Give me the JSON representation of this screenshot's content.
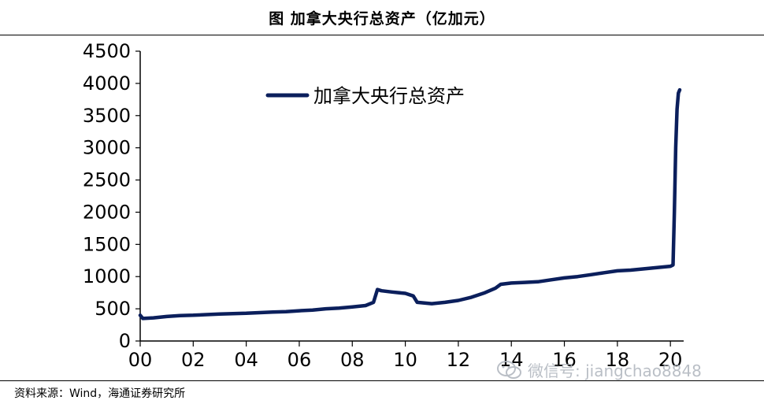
{
  "header": {
    "title": "图 加拿大央行总资产（亿加元）"
  },
  "footer": {
    "source": "资料来源：Wind，海通证券研究所"
  },
  "watermark": {
    "text": "微信号: jiangchao8848",
    "icon": "wechat-icon"
  },
  "colors": {
    "line": "#0b1f5c",
    "axis": "#000000",
    "watermark": "#aeb4bd"
  },
  "chart_data": {
    "type": "line",
    "title": "",
    "xlabel": "",
    "ylabel": "",
    "ylim": [
      0,
      4500
    ],
    "xlim": [
      2000,
      2020.5
    ],
    "yticks": [
      0,
      500,
      1000,
      1500,
      2000,
      2500,
      3000,
      3500,
      4000,
      4500
    ],
    "xtick_labels": [
      "00",
      "02",
      "04",
      "06",
      "08",
      "10",
      "12",
      "14",
      "16",
      "18",
      "20"
    ],
    "grid": false,
    "legend": {
      "position": "top-left",
      "entries": [
        "加拿大央行总资产"
      ]
    },
    "series": [
      {
        "name": "加拿大央行总资产",
        "x": [
          2000.0,
          2000.1,
          2000.5,
          2001.0,
          2001.5,
          2002.0,
          2002.5,
          2003.0,
          2003.5,
          2004.0,
          2004.5,
          2005.0,
          2005.5,
          2006.0,
          2006.5,
          2007.0,
          2007.5,
          2008.0,
          2008.5,
          2008.8,
          2008.95,
          2009.1,
          2009.5,
          2010.0,
          2010.3,
          2010.45,
          2011.0,
          2011.5,
          2012.0,
          2012.5,
          2013.0,
          2013.4,
          2013.6,
          2014.0,
          2014.5,
          2015.0,
          2015.5,
          2016.0,
          2016.5,
          2017.0,
          2017.5,
          2018.0,
          2018.5,
          2019.0,
          2019.5,
          2020.0,
          2020.1,
          2020.15,
          2020.2,
          2020.25,
          2020.3,
          2020.35
        ],
        "y": [
          400,
          350,
          360,
          380,
          395,
          400,
          410,
          420,
          425,
          430,
          440,
          450,
          455,
          470,
          480,
          500,
          510,
          530,
          550,
          600,
          800,
          780,
          760,
          740,
          700,
          600,
          580,
          600,
          630,
          680,
          750,
          820,
          880,
          900,
          910,
          920,
          950,
          980,
          1000,
          1030,
          1060,
          1090,
          1100,
          1120,
          1140,
          1160,
          1180,
          2000,
          3000,
          3600,
          3850,
          3900
        ]
      }
    ]
  }
}
